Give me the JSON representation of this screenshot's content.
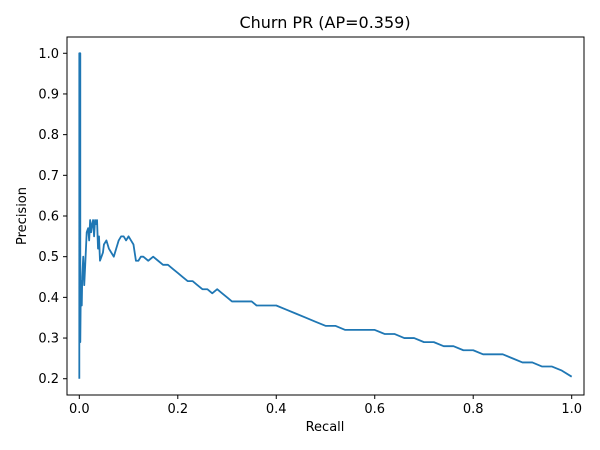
{
  "chart_data": {
    "type": "line",
    "title": "Churn PR (AP=0.359)",
    "xlabel": "Recall",
    "ylabel": "Precision",
    "xlim": [
      -0.025,
      1.025
    ],
    "ylim": [
      0.16,
      1.04
    ],
    "x_ticks": [
      "0.0",
      "0.2",
      "0.4",
      "0.6",
      "0.8",
      "1.0"
    ],
    "y_ticks": [
      "0.2",
      "0.3",
      "0.4",
      "0.5",
      "0.6",
      "0.7",
      "0.8",
      "0.9",
      "1.0"
    ],
    "grid": false,
    "legend": "none",
    "series": [
      {
        "color": "#1f77b4",
        "x": [
          0.0,
          0.0,
          0.002,
          0.002,
          0.003,
          0.004,
          0.005,
          0.006,
          0.008,
          0.01,
          0.012,
          0.015,
          0.018,
          0.02,
          0.022,
          0.024,
          0.026,
          0.028,
          0.03,
          0.032,
          0.034,
          0.036,
          0.038,
          0.04,
          0.042,
          0.045,
          0.048,
          0.05,
          0.055,
          0.06,
          0.065,
          0.07,
          0.075,
          0.08,
          0.085,
          0.09,
          0.095,
          0.1,
          0.105,
          0.11,
          0.115,
          0.12,
          0.125,
          0.13,
          0.14,
          0.15,
          0.16,
          0.17,
          0.18,
          0.19,
          0.2,
          0.21,
          0.22,
          0.23,
          0.24,
          0.25,
          0.26,
          0.27,
          0.28,
          0.29,
          0.3,
          0.31,
          0.32,
          0.33,
          0.34,
          0.35,
          0.36,
          0.37,
          0.38,
          0.39,
          0.4,
          0.42,
          0.44,
          0.46,
          0.48,
          0.5,
          0.52,
          0.54,
          0.56,
          0.58,
          0.6,
          0.62,
          0.64,
          0.66,
          0.68,
          0.7,
          0.72,
          0.74,
          0.76,
          0.78,
          0.8,
          0.82,
          0.84,
          0.86,
          0.88,
          0.9,
          0.92,
          0.94,
          0.96,
          0.98,
          1.0
        ],
        "values": [
          0.2,
          1.0,
          1.0,
          0.29,
          0.42,
          0.44,
          0.38,
          0.45,
          0.5,
          0.43,
          0.48,
          0.56,
          0.57,
          0.54,
          0.59,
          0.56,
          0.58,
          0.59,
          0.55,
          0.59,
          0.58,
          0.59,
          0.52,
          0.55,
          0.49,
          0.5,
          0.51,
          0.53,
          0.54,
          0.52,
          0.51,
          0.5,
          0.52,
          0.54,
          0.55,
          0.55,
          0.54,
          0.55,
          0.54,
          0.53,
          0.49,
          0.49,
          0.5,
          0.5,
          0.49,
          0.5,
          0.49,
          0.48,
          0.48,
          0.47,
          0.46,
          0.45,
          0.44,
          0.44,
          0.43,
          0.42,
          0.42,
          0.41,
          0.42,
          0.41,
          0.4,
          0.39,
          0.39,
          0.39,
          0.39,
          0.39,
          0.38,
          0.38,
          0.38,
          0.38,
          0.38,
          0.37,
          0.36,
          0.35,
          0.34,
          0.33,
          0.33,
          0.32,
          0.32,
          0.32,
          0.32,
          0.31,
          0.31,
          0.3,
          0.3,
          0.29,
          0.29,
          0.28,
          0.28,
          0.27,
          0.27,
          0.26,
          0.26,
          0.26,
          0.25,
          0.24,
          0.24,
          0.23,
          0.23,
          0.22,
          0.205
        ]
      }
    ]
  }
}
